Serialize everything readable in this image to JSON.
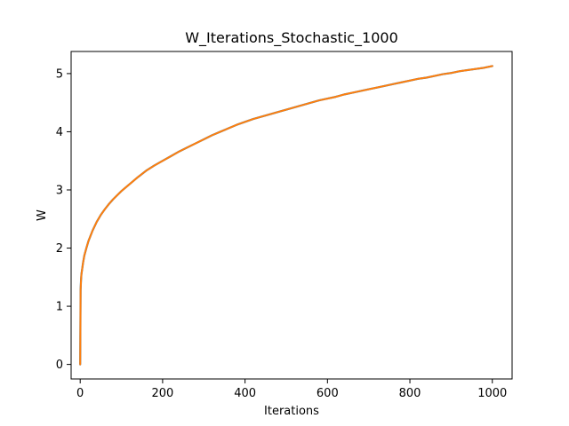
{
  "chart_data": {
    "type": "line",
    "title": "W_Iterations_Stochastic_1000",
    "xlabel": "Iterations",
    "ylabel": "W",
    "xlim": [
      -22,
      1048
    ],
    "ylim": [
      -0.25,
      5.38
    ],
    "xticks": [
      0,
      200,
      400,
      600,
      800,
      1000
    ],
    "yticks": [
      0,
      1,
      2,
      3,
      4,
      5
    ],
    "xtick_labels": [
      "0",
      "200",
      "400",
      "600",
      "800",
      "1000"
    ],
    "ytick_labels": [
      "0",
      "1",
      "2",
      "3",
      "4",
      "5"
    ],
    "grid": false,
    "colors": {
      "background": "#ffffff",
      "axes": "#000000",
      "series_underlay": "#1f77b4",
      "series": "#ff7f0e"
    },
    "series": [
      {
        "x": [
          0,
          1,
          2,
          3,
          5,
          7,
          10,
          15,
          20,
          30,
          40,
          50,
          60,
          70,
          80,
          90,
          100,
          120,
          140,
          160,
          180,
          200,
          220,
          240,
          260,
          280,
          300,
          320,
          340,
          360,
          380,
          400,
          420,
          440,
          460,
          480,
          500,
          520,
          540,
          560,
          580,
          600,
          620,
          640,
          660,
          680,
          700,
          720,
          740,
          760,
          780,
          800,
          820,
          840,
          860,
          880,
          900,
          920,
          940,
          960,
          980,
          1000
        ],
        "values": [
          0.0,
          1.28,
          1.45,
          1.55,
          1.65,
          1.75,
          1.87,
          2.0,
          2.12,
          2.3,
          2.45,
          2.57,
          2.67,
          2.76,
          2.84,
          2.91,
          2.98,
          3.1,
          3.22,
          3.33,
          3.42,
          3.5,
          3.58,
          3.66,
          3.73,
          3.8,
          3.87,
          3.94,
          4.0,
          4.06,
          4.12,
          4.17,
          4.22,
          4.26,
          4.3,
          4.34,
          4.38,
          4.42,
          4.46,
          4.5,
          4.54,
          4.57,
          4.6,
          4.64,
          4.67,
          4.7,
          4.73,
          4.76,
          4.79,
          4.82,
          4.85,
          4.88,
          4.91,
          4.93,
          4.96,
          4.99,
          5.01,
          5.04,
          5.06,
          5.08,
          5.1,
          5.13
        ]
      }
    ]
  }
}
